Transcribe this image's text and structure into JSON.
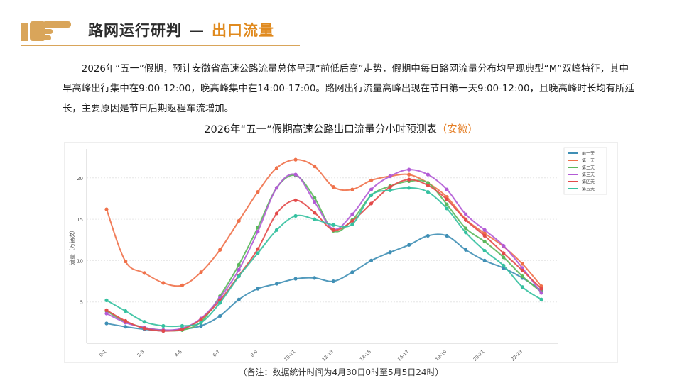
{
  "header": {
    "title": "路网运行研判",
    "separator": "—",
    "subtitle": "出口流量"
  },
  "paragraph": "2026年“五一”假期，预计安徽省高速公路流量总体呈现“前低后高”走势，假期中每日路网流量分布均呈现典型“M”双峰特征，其中早高峰出行集中在9:00-12:00，晚高峰集中在14:00-17:00。路网出行流量高峰出现在节日第一天9:00-12:00，且晚高峰时长均有所延长，主要原因是节日后期返程车流增加。",
  "note": "（备注：数据统计时间为4月30日0时至5月5日24时）",
  "colors": {
    "accent": "#e08a1e",
    "gold": "#d9a55a"
  },
  "chart_data": {
    "type": "line",
    "title": "2026年“五一”假期高速公路出口流量分小时预测表",
    "title_highlight": "（安徽）",
    "xlabel": "",
    "ylabel": "流量（万辆次）",
    "ylim": [
      0,
      23.5
    ],
    "yticks": [
      5,
      10,
      15,
      20
    ],
    "grid": true,
    "legend_position": "top-right",
    "categories": [
      "0-1",
      "1-2",
      "2-3",
      "3-4",
      "4-5",
      "5-6",
      "6-7",
      "7-8",
      "8-9",
      "9-10",
      "10-11",
      "11-12",
      "12-13",
      "13-14",
      "14-15",
      "15-16",
      "16-17",
      "17-18",
      "18-19",
      "19-20",
      "20-21",
      "21-22",
      "22-23",
      "23-24"
    ],
    "xtick_labels": [
      "0-1",
      "",
      "2-3",
      "",
      "4-5",
      "",
      "6-7",
      "",
      "8-9",
      "",
      "10-11",
      "",
      "12-13",
      "",
      "14-15",
      "",
      "16-17",
      "",
      "18-19",
      "",
      "20-21",
      "",
      "22-23",
      ""
    ],
    "series": [
      {
        "name": "前一天",
        "color": "#3f8fb5",
        "values": [
          2.4,
          2.0,
          1.7,
          1.5,
          1.7,
          2.1,
          3.3,
          5.3,
          6.6,
          7.2,
          7.8,
          7.9,
          7.5,
          8.6,
          10.0,
          11.0,
          11.9,
          13.0,
          13.0,
          11.3,
          10.0,
          9.1,
          7.9,
          6.4
        ]
      },
      {
        "name": "第一天",
        "color": "#f0714a",
        "values": [
          16.2,
          9.9,
          8.5,
          7.3,
          7.0,
          8.6,
          11.3,
          14.8,
          18.3,
          21.2,
          22.2,
          21.4,
          18.9,
          18.6,
          19.7,
          20.2,
          20.4,
          19.4,
          17.7,
          15.0,
          13.3,
          11.7,
          9.6,
          6.9
        ]
      },
      {
        "name": "第二天",
        "color": "#5cb85c",
        "values": [
          3.9,
          2.6,
          1.9,
          1.6,
          1.6,
          2.6,
          5.7,
          9.5,
          14.0,
          18.8,
          20.3,
          17.6,
          13.6,
          14.9,
          17.9,
          19.0,
          19.6,
          19.4,
          16.8,
          13.9,
          12.3,
          10.4,
          8.1,
          6.2
        ]
      },
      {
        "name": "第三天",
        "color": "#b35bd6",
        "values": [
          3.6,
          2.5,
          1.9,
          1.6,
          1.8,
          3.0,
          5.5,
          8.9,
          13.5,
          18.8,
          20.4,
          17.1,
          13.8,
          15.6,
          18.6,
          20.2,
          21.0,
          20.4,
          18.6,
          15.6,
          13.7,
          11.8,
          9.1,
          6.1
        ]
      },
      {
        "name": "第四天",
        "color": "#e34a4a",
        "values": [
          4.0,
          2.7,
          1.8,
          1.5,
          1.7,
          2.9,
          5.2,
          8.2,
          11.4,
          15.7,
          17.3,
          15.8,
          13.7,
          14.8,
          16.9,
          18.9,
          19.8,
          19.1,
          17.4,
          14.9,
          13.0,
          10.9,
          8.8,
          6.6
        ]
      },
      {
        "name": "第五天",
        "color": "#35c1a0",
        "values": [
          5.2,
          3.9,
          2.6,
          2.1,
          2.1,
          2.5,
          4.9,
          8.1,
          10.9,
          13.7,
          15.4,
          15.0,
          14.3,
          14.4,
          17.9,
          18.5,
          18.8,
          18.3,
          16.3,
          13.4,
          11.2,
          9.4,
          6.8,
          5.3
        ]
      }
    ]
  }
}
